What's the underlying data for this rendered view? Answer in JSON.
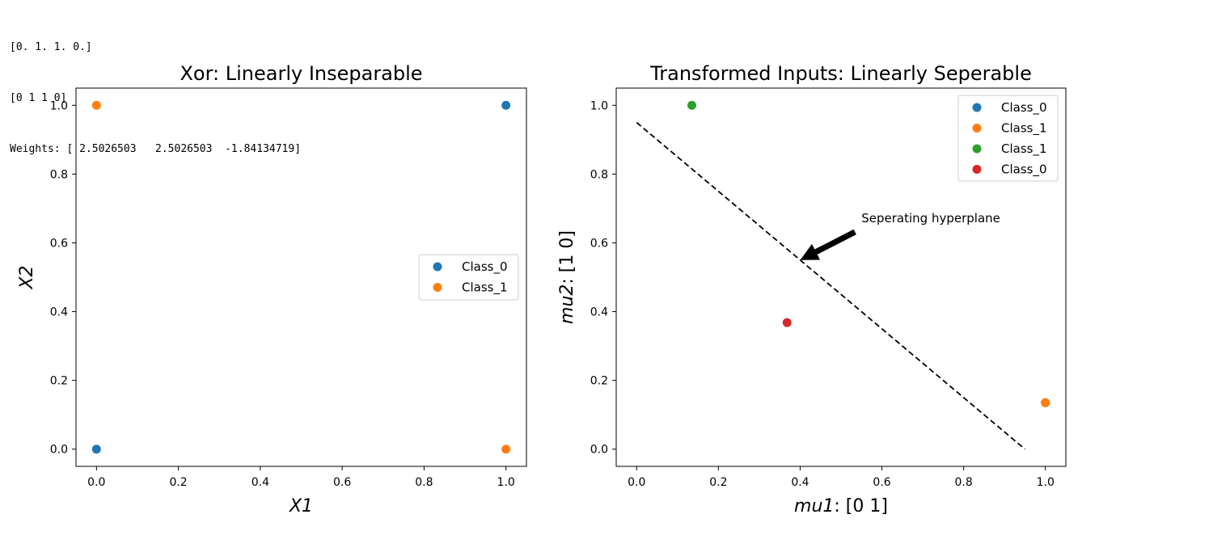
{
  "console_output": [
    "[0. 1. 1. 0.]",
    "[0 1 1 0]",
    "Weights: [ 2.5026503   2.5026503  -1.84134719]"
  ],
  "chart_data": [
    {
      "type": "scatter",
      "title": "Xor: Linearly Inseparable",
      "xlabel": "X1",
      "ylabel": "X2",
      "xlim": [
        -0.05,
        1.05
      ],
      "ylim": [
        -0.05,
        1.05
      ],
      "xticks": [
        "0.0",
        "0.2",
        "0.4",
        "0.6",
        "0.8",
        "1.0"
      ],
      "yticks": [
        "0.0",
        "0.2",
        "0.4",
        "0.6",
        "0.8",
        "1.0"
      ],
      "grid": false,
      "legend_position": "center-right",
      "series": [
        {
          "name": "Class_0",
          "color": "#1f77b4",
          "points": [
            [
              0,
              0
            ],
            [
              1,
              1
            ]
          ]
        },
        {
          "name": "Class_1",
          "color": "#ff7f0e",
          "points": [
            [
              0,
              1
            ],
            [
              1,
              0
            ]
          ]
        }
      ]
    },
    {
      "type": "scatter",
      "title": "Transformed Inputs: Linearly Seperable",
      "xlabel": "mu1: [0 1]",
      "ylabel": "mu2: [1 0]",
      "xlim": [
        -0.05,
        1.05
      ],
      "ylim": [
        -0.05,
        1.05
      ],
      "xticks": [
        "0.0",
        "0.2",
        "0.4",
        "0.6",
        "0.8",
        "1.0"
      ],
      "yticks": [
        "0.0",
        "0.2",
        "0.4",
        "0.6",
        "0.8",
        "1.0"
      ],
      "grid": false,
      "legend_position": "top-right",
      "series": [
        {
          "name": "Class_0",
          "color": "#1f77b4",
          "points": [
            [
              1,
              0.135
            ]
          ]
        },
        {
          "name": "Class_1",
          "color": "#ff7f0e",
          "points": [
            [
              1,
              0.135
            ]
          ]
        },
        {
          "name": "Class_1",
          "color": "#2ca02c",
          "points": [
            [
              0.135,
              1
            ]
          ]
        },
        {
          "name": "Class_0",
          "color": "#d62728",
          "points": [
            [
              0.368,
              0.368
            ]
          ]
        }
      ],
      "line": {
        "points": [
          [
            0,
            0.95
          ],
          [
            0.95,
            0
          ]
        ],
        "style": "dashed",
        "color": "#000000"
      },
      "annotation": {
        "text": "Seperating hyperplane",
        "text_at": [
          0.55,
          0.66
        ],
        "arrow_to": [
          0.4,
          0.55
        ]
      }
    }
  ]
}
